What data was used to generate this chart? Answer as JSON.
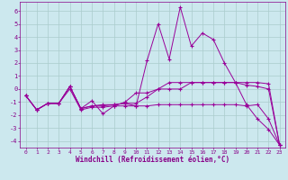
{
  "title": "",
  "xlabel": "Windchill (Refroidissement éolien,°C)",
  "background_color": "#cce8ee",
  "line_color": "#990099",
  "grid_color": "#aacccc",
  "xlim": [
    -0.5,
    23.5
  ],
  "ylim": [
    -4.5,
    6.7
  ],
  "yticks": [
    -4,
    -3,
    -2,
    -1,
    0,
    1,
    2,
    3,
    4,
    5,
    6
  ],
  "xticks": [
    0,
    1,
    2,
    3,
    4,
    5,
    6,
    7,
    8,
    9,
    10,
    11,
    12,
    13,
    14,
    15,
    16,
    17,
    18,
    19,
    20,
    21,
    22,
    23
  ],
  "series": [
    [
      -0.5,
      -1.6,
      -1.1,
      -1.1,
      0.2,
      -1.5,
      -1.3,
      -1.3,
      -1.2,
      -1.1,
      -1.3,
      -1.3,
      -1.2,
      -1.2,
      -1.2,
      -1.2,
      -1.2,
      -1.2,
      -1.2,
      -1.2,
      -1.3,
      -1.2,
      -2.3,
      -4.3
    ],
    [
      -0.5,
      -1.6,
      -1.1,
      -1.1,
      0.2,
      -1.5,
      -0.9,
      -1.9,
      -1.3,
      -1.3,
      -1.3,
      2.2,
      5.0,
      2.3,
      6.3,
      3.3,
      4.3,
      3.8,
      2.0,
      0.5,
      -1.2,
      -2.3,
      -3.1,
      -4.3
    ],
    [
      -0.5,
      -1.6,
      -1.1,
      -1.1,
      0.0,
      -1.6,
      -1.4,
      -1.4,
      -1.3,
      -1.0,
      -0.3,
      -0.3,
      0.0,
      0.5,
      0.5,
      0.5,
      0.5,
      0.5,
      0.5,
      0.5,
      0.3,
      0.2,
      0.0,
      -4.3
    ],
    [
      -0.5,
      -1.6,
      -1.1,
      -1.1,
      0.2,
      -1.5,
      -1.3,
      -1.2,
      -1.2,
      -1.1,
      -1.1,
      -0.6,
      0.0,
      0.0,
      0.0,
      0.5,
      0.5,
      0.5,
      0.5,
      0.5,
      0.5,
      0.5,
      0.4,
      -4.3
    ]
  ]
}
